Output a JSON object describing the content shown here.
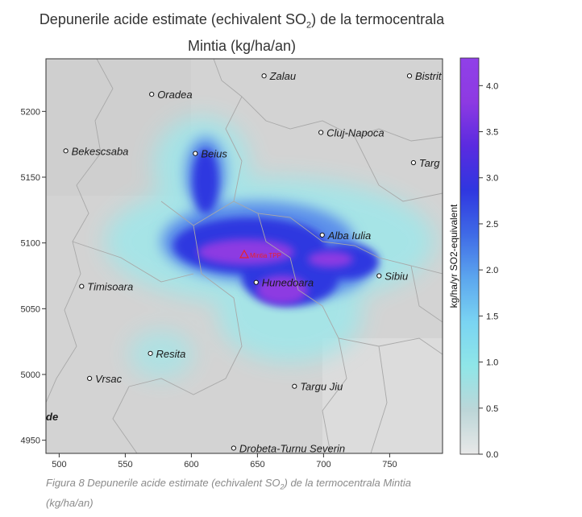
{
  "title_line1_prefix": "Depunerile acide estimate (echivalent SO",
  "title_line1_sub": "2",
  "title_line1_suffix": ") de la termocentrala",
  "title_line2": "Mintia (kg/ha/an)",
  "caption_prefix": "Figura 8 Depunerile acide estimate (echivalent SO",
  "caption_sub": "2",
  "caption_suffix": ") de la termocentrala Mintia",
  "caption_line2": "(kg/ha/an)",
  "map": {
    "x_ticks": [
      "500",
      "550",
      "600",
      "650",
      "700",
      "750"
    ],
    "y_ticks": [
      "5200",
      "5150",
      "5100",
      "5050",
      "5000",
      "4950"
    ],
    "source_label": "Mintia TPP",
    "source_color": "#e8222a",
    "cities": [
      {
        "name": "Zalau",
        "x": 655,
        "y": 5227
      },
      {
        "name": "Bistrit",
        "x": 765,
        "y": 5227
      },
      {
        "name": "Oradea",
        "x": 570,
        "y": 5213
      },
      {
        "name": "Cluj-Napoca",
        "x": 698,
        "y": 5184
      },
      {
        "name": "Bekescsaba",
        "x": 505,
        "y": 5170
      },
      {
        "name": "Beius",
        "x": 603,
        "y": 5168
      },
      {
        "name": "Targ",
        "x": 768,
        "y": 5161
      },
      {
        "name": "Alba Iulia",
        "x": 699,
        "y": 5106
      },
      {
        "name": "Sibiu",
        "x": 742,
        "y": 5075
      },
      {
        "name": "Hunedoara",
        "x": 649,
        "y": 5070
      },
      {
        "name": "Timisoara",
        "x": 517,
        "y": 5067
      },
      {
        "name": "Resita",
        "x": 569,
        "y": 5016
      },
      {
        "name": "Vrsac",
        "x": 523,
        "y": 4997
      },
      {
        "name": "Targu Jiu",
        "x": 678,
        "y": 4991
      },
      {
        "name": "Drobeta-Turnu Severin",
        "x": 632,
        "y": 4944
      }
    ],
    "edge_label": "de"
  },
  "colorbar": {
    "label": "kg/ha/yr SO2-equivalent",
    "ticks": [
      "0.0",
      "0.5",
      "1.0",
      "1.5",
      "2.0",
      "2.5",
      "3.0",
      "3.5",
      "4.0"
    ],
    "min": 0.0,
    "max": 4.3,
    "colors": [
      "#e8e8e8",
      "#bcd6d8",
      "#8fe6e8",
      "#7ad4f2",
      "#5ca6ee",
      "#3f6ae6",
      "#2f36e0",
      "#5a2be0",
      "#8d3ae2",
      "#9040e8"
    ]
  }
}
